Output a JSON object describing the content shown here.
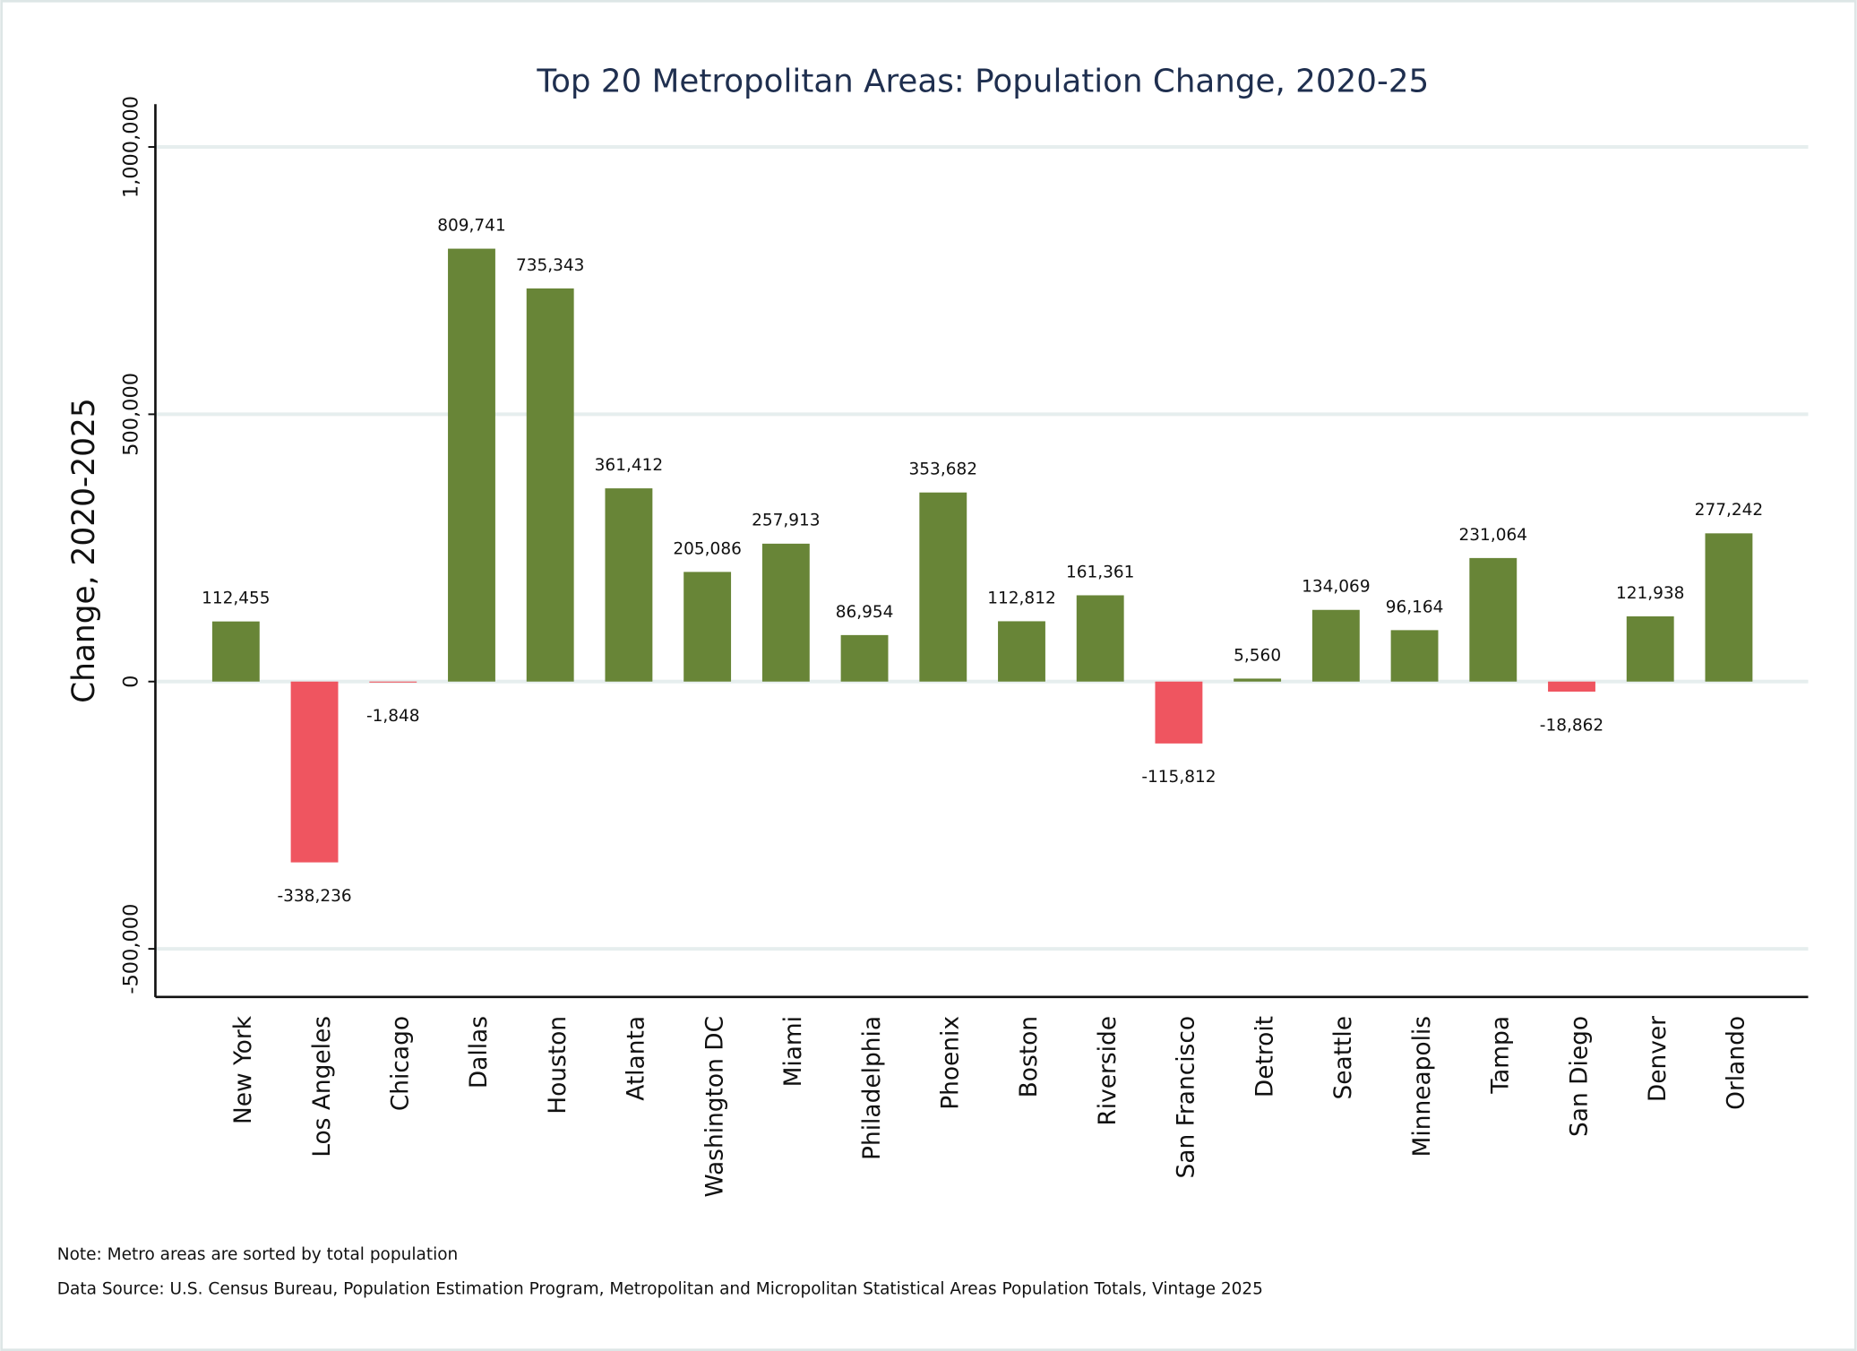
{
  "chart_data": {
    "type": "bar",
    "title": "Top 20 Metropolitan Areas: Population Change, 2020-25",
    "y_label": "Change, 2020-2025",
    "categories": [
      "New York",
      "Los Angeles",
      "Chicago",
      "Dallas",
      "Houston",
      "Atlanta",
      "Washington DC",
      "Miami",
      "Philadelphia",
      "Phoenix",
      "Boston",
      "Riverside",
      "San Francisco",
      "Detroit",
      "Seattle",
      "Minneapolis",
      "Tampa",
      "San Diego",
      "Denver",
      "Orlando"
    ],
    "values": [
      112455,
      -338236,
      -1848,
      809741,
      735343,
      361412,
      205086,
      257913,
      86954,
      353682,
      112812,
      161361,
      -115812,
      5560,
      134069,
      96164,
      231064,
      -18862,
      121938,
      277242
    ],
    "value_labels": [
      "112,455",
      "-338,236",
      "-1,848",
      "809,741",
      "735,343",
      "361,412",
      "205,086",
      "257,913",
      "86,954",
      "353,682",
      "112,812",
      "161,361",
      "-115,812",
      "5,560",
      "134,069",
      "96,164",
      "231,064",
      "-18,862",
      "121,938",
      "277,242"
    ],
    "color": "#688537",
    "negative_color": "#ef5560",
    "ylim": [
      -590000,
      1080000
    ],
    "yticks": [
      {
        "value": -500000,
        "label": "-500,000"
      },
      0,
      {
        "value": 500000,
        "label": "500,000"
      },
      {
        "value": 1000000,
        "label": "1,000,000"
      }
    ],
    "grid": true,
    "note": "Note: Metro areas are sorted by total population",
    "source": "Data Source: U.S. Census Bureau, Population Estimation Program, Metropolitan and Micropolitan Statistical Areas Population Totals, Vintage 2025"
  }
}
